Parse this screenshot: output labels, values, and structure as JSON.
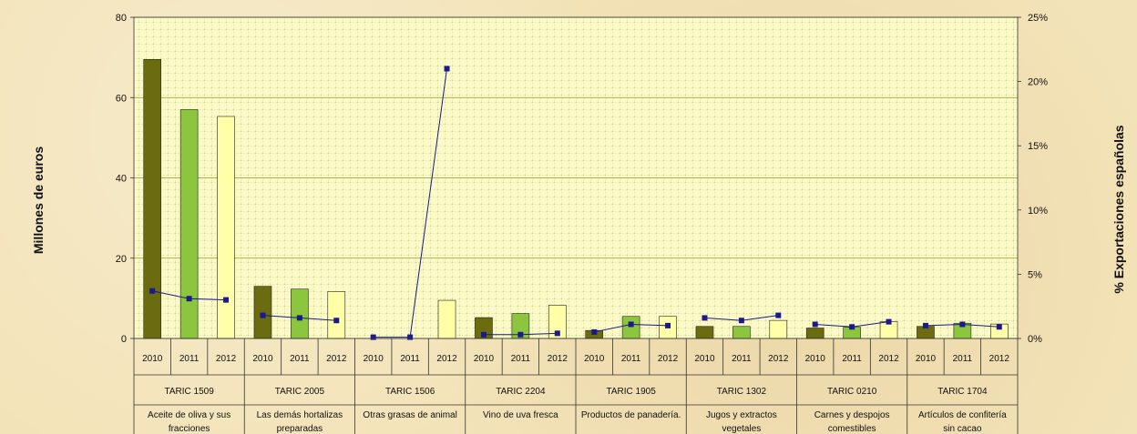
{
  "chart_data": {
    "type": "bar",
    "ylabel": "Millones de euros",
    "y2label": "% Exportaciones españolas",
    "ylim": [
      0,
      80
    ],
    "yticks": [
      "0",
      "20",
      "40",
      "60",
      "80"
    ],
    "y2lim": [
      0,
      25
    ],
    "y2ticks": [
      "0%",
      "5%",
      "10%",
      "15%",
      "20%",
      "25%"
    ],
    "grid": true,
    "years": [
      "2010",
      "2011",
      "2012"
    ],
    "colors": {
      "2010": "#6b6b10",
      "2011": "#8cc63f",
      "2012": "#ffffa8",
      "line": "#1a1a8c",
      "plot_bg": "#fcfac8",
      "grid": "#8a9a30"
    },
    "groups": [
      {
        "code": "TARIC 1509",
        "name": [
          "Aceite de oliva y sus",
          "fracciones"
        ],
        "values": [
          69.5,
          57,
          55.3
        ],
        "share": [
          3.7,
          3.1,
          3.0
        ]
      },
      {
        "code": "TARIC 2005",
        "name": [
          "Las demás hortalizas",
          "preparadas"
        ],
        "values": [
          13,
          12.3,
          11.7
        ],
        "share": [
          1.8,
          1.6,
          1.4
        ]
      },
      {
        "code": "TARIC 1506",
        "name": [
          "Otras grasas de animal"
        ],
        "values": [
          0,
          0,
          9.5
        ],
        "share": [
          0.1,
          0.1,
          21.0
        ]
      },
      {
        "code": "TARIC 2204",
        "name": [
          "Vino de uva fresca"
        ],
        "values": [
          5.2,
          6.2,
          8.3
        ],
        "share": [
          0.3,
          0.3,
          0.4
        ]
      },
      {
        "code": "TARIC 1905",
        "name": [
          "Productos de panadería."
        ],
        "values": [
          2.0,
          5.5,
          5.5
        ],
        "share": [
          0.5,
          1.1,
          1.0
        ]
      },
      {
        "code": "TARIC 1302",
        "name": [
          "Jugos y extractos",
          "vegetales"
        ],
        "values": [
          3.0,
          3.0,
          4.5
        ],
        "share": [
          1.6,
          1.4,
          1.8
        ]
      },
      {
        "code": "TARIC 0210",
        "name": [
          "Carnes y despojos",
          "comestibles"
        ],
        "values": [
          2.6,
          2.8,
          4.2
        ],
        "share": [
          1.1,
          0.9,
          1.3
        ]
      },
      {
        "code": "TARIC 1704",
        "name": [
          "Artículos de confitería",
          "sin cacao"
        ],
        "values": [
          3.0,
          3.8,
          3.6
        ],
        "share": [
          1.0,
          1.1,
          0.9
        ]
      }
    ]
  }
}
